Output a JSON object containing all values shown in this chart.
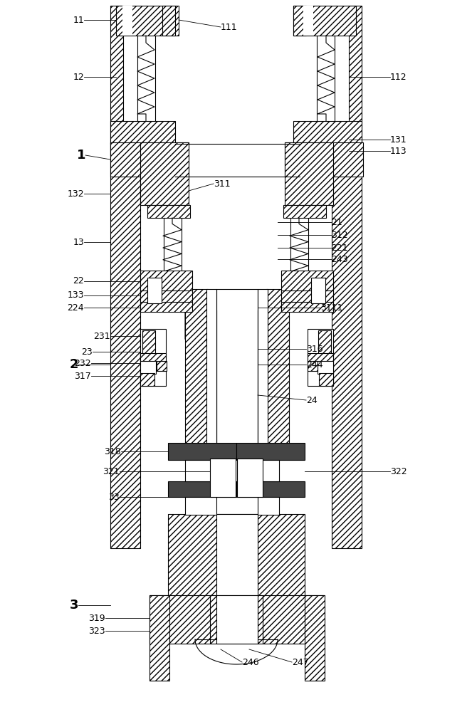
{
  "bg": "#ffffff",
  "lw": 0.8,
  "H": "////",
  "figsize": [
    6.63,
    10.0
  ],
  "dpi": 100,
  "fs": 9,
  "fs_big": 13
}
